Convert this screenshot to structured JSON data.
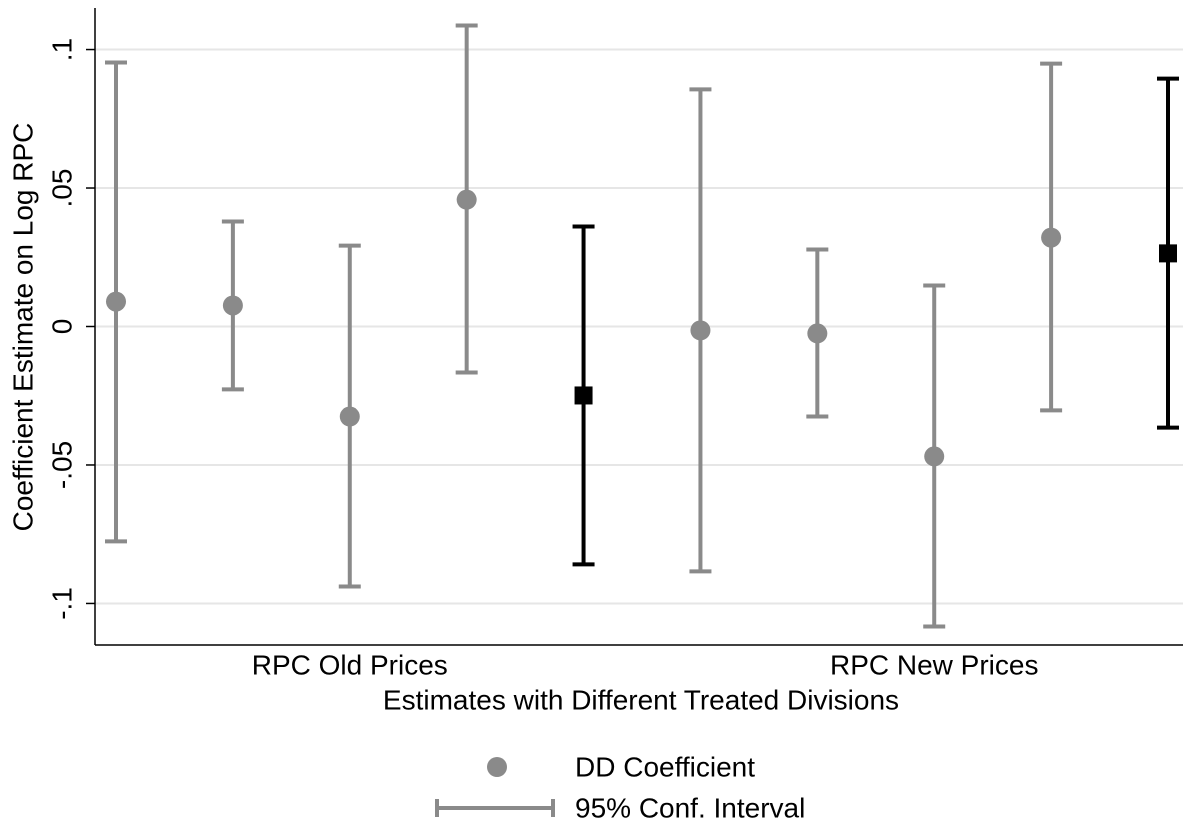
{
  "chart_data": {
    "type": "errorbar",
    "ylabel": "Coefficient Estimate on Log RPC",
    "xlabel": "Estimates with Different Treated Divisions",
    "categories": [
      null,
      null,
      "RPC Old Prices",
      null,
      null,
      null,
      null,
      "RPC New Prices",
      null,
      null
    ],
    "series": [
      {
        "name": "DD Coefficient",
        "interval_name": "95% Conf. Interval",
        "color": "#8a8a8a",
        "values": [
          0.009,
          0.0076,
          -0.0325,
          0.0458,
          -0.0249,
          -0.0014,
          -0.0025,
          -0.0469,
          0.0321,
          0.0264
        ],
        "lower": [
          -0.0776,
          -0.0227,
          -0.0939,
          -0.0166,
          -0.0859,
          -0.0884,
          -0.0325,
          -0.1083,
          -0.0303,
          -0.0365
        ],
        "upper": [
          0.0953,
          0.0379,
          0.0292,
          0.1087,
          0.0361,
          0.0856,
          0.0278,
          0.0148,
          0.0949,
          0.0895
        ],
        "point_colors": [
          "#8a8a8a",
          "#8a8a8a",
          "#8a8a8a",
          "#8a8a8a",
          "#000000",
          "#8a8a8a",
          "#8a8a8a",
          "#8a8a8a",
          "#8a8a8a",
          "#000000"
        ],
        "markers": [
          "circle",
          "circle",
          "circle",
          "circle",
          "square",
          "circle",
          "circle",
          "circle",
          "circle",
          "square"
        ]
      }
    ],
    "ylim": [
      -0.115,
      0.115
    ],
    "yticks": [
      {
        "value": -0.1,
        "label": "-.1"
      },
      {
        "value": -0.05,
        "label": "-.05"
      },
      0,
      {
        "value": 0.05,
        "label": ".05"
      },
      {
        "value": 0.1,
        "label": ".1"
      }
    ],
    "grid": true
  }
}
